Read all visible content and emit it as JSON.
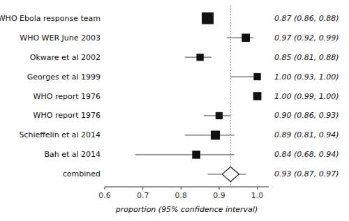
{
  "chart_data": {
    "type": "forest",
    "categories": [
      "WHO Ebola response team",
      "WHO WER June 2003",
      "Okware et al 2002",
      "Georges et al 1999",
      "WHO report 1976",
      "WHO report 1976",
      "Schieffelin et al 2014",
      "Bah et al 2014",
      "combined"
    ],
    "values": [
      0.87,
      0.97,
      0.85,
      1.0,
      1.0,
      0.9,
      0.89,
      0.84,
      0.93
    ],
    "value_labels": [
      "0.87 (0.86, 0.88)",
      "0.97 (0.92, 0.99)",
      "0.85 (0.81, 0.88)",
      "1.00 (0.93, 1.00)",
      "1.00 (0.99, 1.00)",
      "0.90 (0.86, 0.93)",
      "0.89 (0.81, 0.94)",
      "0.84 (0.68, 0.94)",
      "0.93 (0.87, 0.97)"
    ],
    "ci_low": [
      0.86,
      0.92,
      0.81,
      0.93,
      0.99,
      0.86,
      0.81,
      0.68,
      0.87
    ],
    "ci_high": [
      0.88,
      0.99,
      0.88,
      1.0,
      1.0,
      0.93,
      0.94,
      0.94,
      0.97
    ],
    "weights": [
      18,
      10,
      8,
      8,
      10,
      8,
      12,
      10,
      0
    ],
    "reference_line": 0.93,
    "xlim": [
      0.6,
      1.03
    ],
    "xticks": [
      0.6,
      0.7,
      0.8,
      0.9,
      {
        "value": 1,
        "label": "1.0"
      }
    ],
    "xlabel": "proportion (95% confidence interval)",
    "color": "#111111"
  }
}
